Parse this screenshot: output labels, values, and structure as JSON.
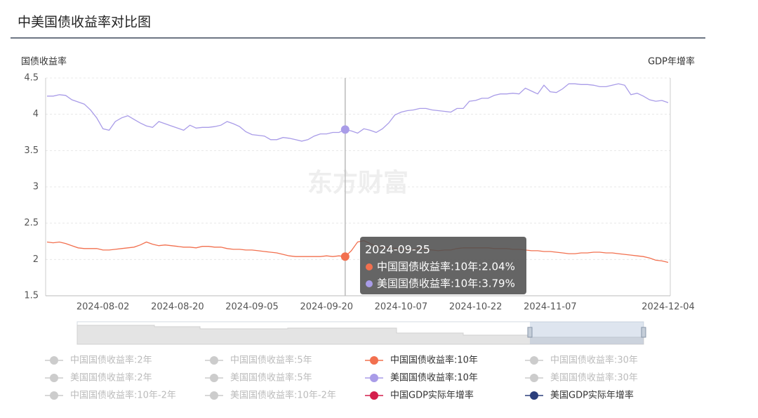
{
  "chart_data": {
    "type": "line",
    "title": "中美国债收益率对比图",
    "y_label": "国债收益率",
    "y2_label": "GDP年增率",
    "watermark": "东方财富",
    "ylim": [
      1.5,
      4.5
    ],
    "yticks": [
      1.5,
      2,
      2.5,
      3,
      3.5,
      4,
      4.5
    ],
    "grid": true,
    "categories": [
      null,
      null,
      null,
      null,
      null,
      null,
      null,
      null,
      null,
      "2024-08-02",
      null,
      null,
      null,
      null,
      null,
      null,
      null,
      null,
      null,
      null,
      null,
      "2024-08-20",
      null,
      null,
      null,
      null,
      null,
      null,
      null,
      null,
      null,
      null,
      null,
      "2024-09-05",
      null,
      null,
      null,
      null,
      null,
      null,
      null,
      null,
      null,
      null,
      null,
      "2024-09-20",
      null,
      null,
      null,
      null,
      null,
      null,
      null,
      null,
      null,
      null,
      null,
      "2024-10-07",
      null,
      null,
      null,
      null,
      null,
      null,
      null,
      null,
      null,
      null,
      null,
      "2024-10-22",
      null,
      null,
      null,
      null,
      null,
      null,
      null,
      null,
      null,
      null,
      null,
      "2024-11-07",
      null,
      null,
      null,
      null,
      null,
      null,
      null,
      null,
      null,
      null,
      null,
      null,
      null,
      null,
      null,
      null,
      null,
      null,
      "2024-12-04"
    ],
    "series": [
      {
        "name": "中国国债收益率:2年",
        "color": "#cccccc",
        "selected": false
      },
      {
        "name": "中国国债收益率:5年",
        "color": "#cccccc",
        "selected": false
      },
      {
        "name": "中国国债收益率:10年",
        "color": "#f2704f",
        "selected": true,
        "values": [
          2.24,
          2.23,
          2.24,
          2.22,
          2.19,
          2.16,
          2.15,
          2.15,
          2.15,
          2.13,
          2.13,
          2.14,
          2.15,
          2.16,
          2.17,
          2.2,
          2.24,
          2.21,
          2.19,
          2.2,
          2.19,
          2.18,
          2.17,
          2.17,
          2.16,
          2.18,
          2.18,
          2.17,
          2.17,
          2.15,
          2.14,
          2.14,
          2.13,
          2.13,
          2.12,
          2.11,
          2.1,
          2.09,
          2.07,
          2.05,
          2.04,
          2.04,
          2.04,
          2.04,
          2.04,
          2.05,
          2.04,
          2.05,
          2.04,
          2.12,
          2.24,
          2.26,
          2.22,
          2.18,
          2.16,
          2.17,
          2.15,
          2.14,
          2.13,
          2.14,
          2.15,
          2.14,
          2.13,
          2.12,
          2.13,
          2.13,
          2.15,
          2.16,
          2.16,
          2.16,
          2.16,
          2.16,
          2.15,
          2.15,
          2.15,
          2.14,
          2.14,
          2.13,
          2.12,
          2.12,
          2.11,
          2.11,
          2.1,
          2.09,
          2.08,
          2.08,
          2.09,
          2.09,
          2.1,
          2.1,
          2.09,
          2.09,
          2.08,
          2.07,
          2.06,
          2.05,
          2.04,
          2.02,
          1.99,
          1.98,
          1.96
        ]
      },
      {
        "name": "中国国债收益率:30年",
        "color": "#cccccc",
        "selected": false
      },
      {
        "name": "美国国债收益率:2年",
        "color": "#cccccc",
        "selected": false
      },
      {
        "name": "美国国债收益率:5年",
        "color": "#cccccc",
        "selected": false
      },
      {
        "name": "美国国债收益率:10年",
        "color": "#a99ce8",
        "selected": true,
        "values": [
          4.25,
          4.25,
          4.27,
          4.26,
          4.2,
          4.17,
          4.14,
          4.06,
          3.95,
          3.8,
          3.78,
          3.9,
          3.95,
          3.98,
          3.93,
          3.88,
          3.84,
          3.82,
          3.9,
          3.87,
          3.84,
          3.81,
          3.78,
          3.85,
          3.81,
          3.82,
          3.82,
          3.83,
          3.85,
          3.9,
          3.87,
          3.83,
          3.76,
          3.72,
          3.71,
          3.7,
          3.65,
          3.65,
          3.68,
          3.67,
          3.65,
          3.63,
          3.65,
          3.7,
          3.73,
          3.73,
          3.75,
          3.75,
          3.79,
          3.77,
          3.74,
          3.8,
          3.78,
          3.75,
          3.8,
          3.88,
          3.99,
          4.03,
          4.05,
          4.06,
          4.08,
          4.08,
          4.06,
          4.05,
          4.04,
          4.03,
          4.08,
          4.08,
          4.18,
          4.19,
          4.22,
          4.22,
          4.26,
          4.28,
          4.28,
          4.29,
          4.28,
          4.36,
          4.32,
          4.28,
          4.4,
          4.31,
          4.3,
          4.35,
          4.42,
          4.42,
          4.41,
          4.41,
          4.4,
          4.38,
          4.38,
          4.4,
          4.42,
          4.4,
          4.27,
          4.29,
          4.25,
          4.2,
          4.18,
          4.19,
          4.16
        ]
      },
      {
        "name": "美国国债收益率:30年",
        "color": "#cccccc",
        "selected": false
      },
      {
        "name": "中国国债收益率:10年-2年",
        "color": "#cccccc",
        "selected": false
      },
      {
        "name": "美国国债收益率:10年-2年",
        "color": "#cccccc",
        "selected": false
      },
      {
        "name": "中国GDP实际年增率",
        "color": "#d41f4c",
        "selected": true
      },
      {
        "name": "美国GDP实际年增率",
        "color": "#2b3f7c",
        "selected": true
      }
    ],
    "tooltip": {
      "index": 48,
      "title": "2024-09-25",
      "items": [
        {
          "text": "中国国债收益率:10年:2.04%",
          "color": "#f2704f"
        },
        {
          "text": "美国国债收益率:10年:3.79%",
          "color": "#a99ce8"
        }
      ]
    }
  }
}
